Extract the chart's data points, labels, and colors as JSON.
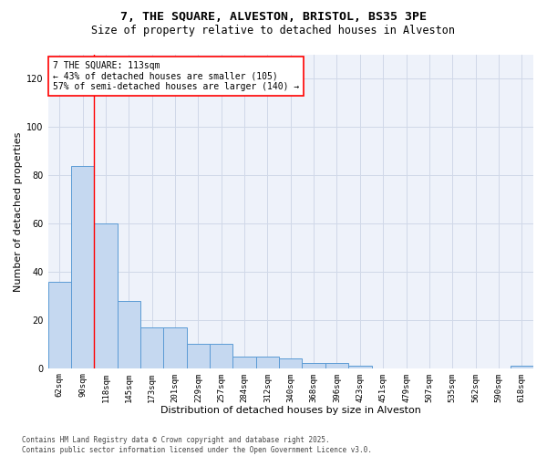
{
  "title_line1": "7, THE SQUARE, ALVESTON, BRISTOL, BS35 3PE",
  "title_line2": "Size of property relative to detached houses in Alveston",
  "xlabel": "Distribution of detached houses by size in Alveston",
  "ylabel": "Number of detached properties",
  "categories": [
    "62sqm",
    "90sqm",
    "118sqm",
    "145sqm",
    "173sqm",
    "201sqm",
    "229sqm",
    "257sqm",
    "284sqm",
    "312sqm",
    "340sqm",
    "368sqm",
    "396sqm",
    "423sqm",
    "451sqm",
    "479sqm",
    "507sqm",
    "535sqm",
    "562sqm",
    "590sqm",
    "618sqm"
  ],
  "values": [
    36,
    84,
    60,
    28,
    17,
    17,
    10,
    10,
    5,
    5,
    4,
    2,
    2,
    1,
    0,
    0,
    0,
    0,
    0,
    0,
    1
  ],
  "bar_color": "#c5d8f0",
  "bar_edge_color": "#5b9bd5",
  "grid_color": "#d0d8e8",
  "background_color": "#eef2fa",
  "annotation_text": "7 THE SQUARE: 113sqm\n← 43% of detached houses are smaller (105)\n57% of semi-detached houses are larger (140) →",
  "annotation_box_color": "white",
  "annotation_box_edge_color": "red",
  "property_line_x": 1.5,
  "ylim": [
    0,
    130
  ],
  "yticks": [
    0,
    20,
    40,
    60,
    80,
    100,
    120
  ],
  "footer_text": "Contains HM Land Registry data © Crown copyright and database right 2025.\nContains public sector information licensed under the Open Government Licence v3.0.",
  "title_fontsize": 9.5,
  "subtitle_fontsize": 8.5,
  "tick_fontsize": 6.5,
  "ylabel_fontsize": 8,
  "xlabel_fontsize": 8,
  "annotation_fontsize": 7,
  "footer_fontsize": 5.5
}
